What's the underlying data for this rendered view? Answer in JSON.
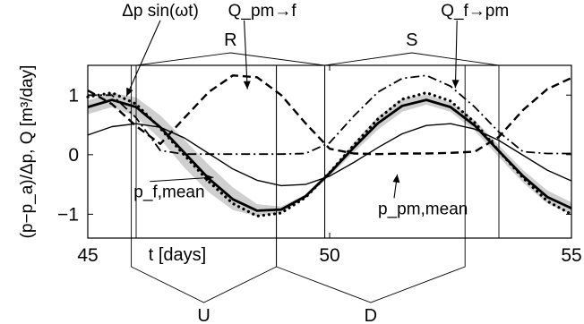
{
  "chart_data": {
    "type": "line",
    "xlabel": "t [days]",
    "ylabel": "(p−p_a)/Δp, Q [m³/day]",
    "xlim": [
      45,
      55
    ],
    "ylim": [
      -1.4,
      1.5
    ],
    "x_ticks": [
      45,
      50,
      55
    ],
    "x_tick_labels": [
      "45",
      "50",
      "55"
    ],
    "y_ticks": [
      -1,
      0,
      1
    ],
    "y_tick_labels": [
      "−1",
      "0",
      "1"
    ],
    "grid": false,
    "legend": "none",
    "series": [
      {
        "name": "Δp sin(ωt)",
        "style": "dotted",
        "width": 3.2,
        "x": [
          45.0,
          45.5,
          46.0,
          46.5,
          47.0,
          47.5,
          48.0,
          48.5,
          49.0,
          49.5,
          50.0,
          50.5,
          51.0,
          51.5,
          52.0,
          52.5,
          53.0,
          53.5,
          54.0,
          54.5,
          55.0
        ],
        "y": [
          0.97,
          1.04,
          0.85,
          0.44,
          -0.01,
          -0.45,
          -0.82,
          -1.03,
          -0.98,
          -0.72,
          -0.3,
          0.16,
          0.6,
          0.93,
          1.04,
          0.9,
          0.54,
          0.06,
          -0.39,
          -0.78,
          -1.0
        ]
      },
      {
        "name": "p_f,mean",
        "style": "solid",
        "width": 2.8,
        "x": [
          45.0,
          45.5,
          46.0,
          46.5,
          47.0,
          47.5,
          48.0,
          48.5,
          49.0,
          49.5,
          50.0,
          50.5,
          51.0,
          51.5,
          52.0,
          52.5,
          53.0,
          53.5,
          54.0,
          54.5,
          55.0
        ],
        "y": [
          0.8,
          0.92,
          0.8,
          0.46,
          0.03,
          -0.4,
          -0.75,
          -0.94,
          -0.92,
          -0.7,
          -0.31,
          0.12,
          0.53,
          0.82,
          0.92,
          0.8,
          0.49,
          0.06,
          -0.36,
          -0.71,
          -0.9
        ]
      },
      {
        "name": "p_pm,mean",
        "style": "solid",
        "width": 1.4,
        "x": [
          45.0,
          45.5,
          46.0,
          46.5,
          47.0,
          47.5,
          48.0,
          48.5,
          49.0,
          49.5,
          50.0,
          50.5,
          51.0,
          51.5,
          52.0,
          52.5,
          53.0,
          53.5,
          54.0,
          54.5,
          55.0
        ],
        "y": [
          0.33,
          0.47,
          0.52,
          0.46,
          0.28,
          0.02,
          -0.24,
          -0.43,
          -0.52,
          -0.5,
          -0.36,
          -0.13,
          0.12,
          0.35,
          0.49,
          0.52,
          0.43,
          0.24,
          -0.01,
          -0.26,
          -0.44
        ]
      },
      {
        "name": "Q_pm→f",
        "style": "dashed",
        "width": 2.4,
        "x": [
          45.0,
          45.5,
          46.0,
          46.5,
          47.0,
          47.5,
          48.0,
          48.5,
          49.0,
          49.5,
          50.0,
          50.5,
          51.0,
          51.5,
          52.0,
          52.5,
          53.0,
          53.5,
          54.0,
          54.5,
          55.0
        ],
        "y": [
          1.08,
          0.85,
          0.48,
          0.18,
          0.62,
          1.05,
          1.33,
          1.3,
          1.0,
          0.53,
          0.1,
          0.02,
          0.01,
          0.02,
          0.02,
          0.03,
          0.05,
          0.3,
          0.75,
          1.1,
          1.29
        ]
      },
      {
        "name": "Q_f→pm",
        "style": "dashdot",
        "width": 1.8,
        "x": [
          45.0,
          45.5,
          46.0,
          46.5,
          47.0,
          47.5,
          48.0,
          48.5,
          49.0,
          49.5,
          50.0,
          50.5,
          51.0,
          51.5,
          52.0,
          52.5,
          53.0,
          53.5,
          54.0,
          54.5,
          55.0
        ],
        "y": [
          1.0,
          1.0,
          0.62,
          0.07,
          0.01,
          0.01,
          0.01,
          0.01,
          0.01,
          0.02,
          0.2,
          0.65,
          1.05,
          1.28,
          1.33,
          1.15,
          0.8,
          0.38,
          0.05,
          0.02,
          0.02
        ]
      }
    ],
    "band": {
      "x": [
        45.0,
        45.5,
        46.0,
        46.5,
        47.0,
        47.5,
        48.0,
        48.5,
        49.0,
        49.5,
        50.0,
        50.5,
        51.0,
        51.5,
        52.0,
        52.5,
        53.0,
        53.5,
        54.0,
        54.5,
        55.0
      ],
      "lower": [
        0.68,
        0.8,
        0.64,
        0.26,
        -0.22,
        -0.63,
        -0.93,
        -1.03,
        -0.97,
        -0.73,
        -0.36,
        0.04,
        0.42,
        0.72,
        0.84,
        0.72,
        0.4,
        -0.04,
        -0.47,
        -0.82,
        -1.0
      ],
      "upper": [
        0.91,
        1.04,
        0.96,
        0.66,
        0.25,
        -0.17,
        -0.55,
        -0.83,
        -0.87,
        -0.67,
        -0.27,
        0.2,
        0.64,
        0.94,
        1.01,
        0.88,
        0.58,
        0.16,
        -0.26,
        -0.6,
        -0.8
      ]
    },
    "intervals": [
      {
        "label": "R",
        "side": "top",
        "from": 46.0,
        "to": 49.9
      },
      {
        "label": "S",
        "side": "top",
        "from": 49.9,
        "to": 53.5
      },
      {
        "label": "U",
        "side": "bottom",
        "from": 45.9,
        "to": 48.9
      },
      {
        "label": "D",
        "side": "bottom",
        "from": 48.9,
        "to": 52.8
      }
    ],
    "annotations": [
      {
        "id": "dp",
        "text": "Δp sin(ωt)",
        "tx": 46.5,
        "ty": 2.33,
        "ax": 45.8,
        "ay": 0.98,
        "anchor": "middle"
      },
      {
        "id": "qpmf",
        "text": "Q_pm→f",
        "tx": 47.9,
        "ty": 2.33,
        "ax": 48.3,
        "ay": 1.1,
        "anchor": "start"
      },
      {
        "id": "qfpm",
        "text": "Q_f→pm",
        "tx": 52.3,
        "ty": 2.33,
        "ax": 52.6,
        "ay": 1.12,
        "anchor": "start"
      },
      {
        "id": "pf",
        "text": "p_f,mean",
        "tx": 45.95,
        "ty": -0.72,
        "ax": 47.6,
        "ay": -0.38,
        "anchor": "start"
      },
      {
        "id": "ppm",
        "text": "p_pm,mean",
        "tx": 51.0,
        "ty": -1.0,
        "ax": 51.4,
        "ay": -0.33,
        "anchor": "start"
      }
    ]
  }
}
